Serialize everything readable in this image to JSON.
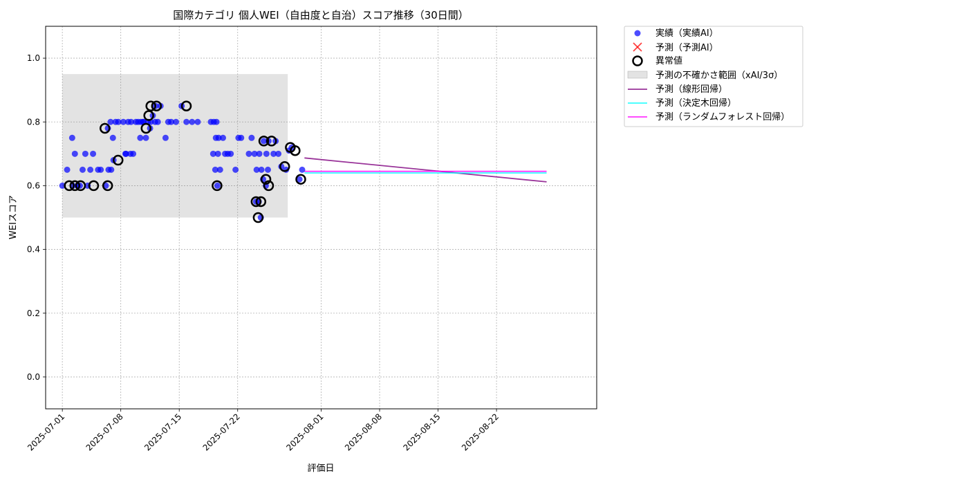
{
  "chart_data": {
    "type": "scatter",
    "title": "国際カテゴリ 個人WEI（自由度と自治）スコア推移（30日間）",
    "xlabel": "評価日",
    "ylabel": "WEIスコア",
    "xlim": [
      "2025-06-29",
      "2025-09-03"
    ],
    "ylim": [
      -0.1,
      1.1
    ],
    "grid": true,
    "legend_position": "outside-top-right",
    "x_ticks": [
      "2025-07-01",
      "2025-07-08",
      "2025-07-15",
      "2025-07-22",
      "2025-08-01",
      "2025-08-08",
      "2025-08-15",
      "2025-08-22"
    ],
    "y_ticks": [
      0.0,
      0.2,
      0.4,
      0.6,
      0.8,
      1.0
    ],
    "legend": [
      {
        "label": "実績（実績AI）",
        "marker": "dot",
        "color": "#0000ff"
      },
      {
        "label": "予測（予測AI）",
        "marker": "x",
        "color": "#ff0000"
      },
      {
        "label": "異常値",
        "marker": "ring",
        "color": "#000000"
      },
      {
        "label": "予測の不確かさ範囲（xAI/3σ）",
        "marker": "band",
        "color": "#808080"
      },
      {
        "label": "予測（線形回帰）",
        "marker": "line",
        "color": "#800080"
      },
      {
        "label": "予測（決定木回帰）",
        "marker": "line",
        "color": "#00ffff"
      },
      {
        "label": "予測（ランダムフォレスト回帰）",
        "marker": "line",
        "color": "#ff00ff"
      }
    ],
    "uncertainty_band": {
      "x_start": "2025-07-01",
      "x_end": "2025-07-28",
      "y_low": 0.5,
      "y_high": 0.95
    },
    "actual": {
      "name": "実績（実績AI）",
      "color": "#0000ff",
      "points": [
        {
          "x": "2025-07-01",
          "y": 0.6
        },
        {
          "x": "2025-07-01",
          "y": 0.65
        },
        {
          "x": "2025-07-02",
          "y": 0.6
        },
        {
          "x": "2025-07-02",
          "y": 0.6
        },
        {
          "x": "2025-07-02",
          "y": 0.7
        },
        {
          "x": "2025-07-02",
          "y": 0.75
        },
        {
          "x": "2025-07-03",
          "y": 0.7
        },
        {
          "x": "2025-07-03",
          "y": 0.65
        },
        {
          "x": "2025-07-03",
          "y": 0.6
        },
        {
          "x": "2025-07-04",
          "y": 0.7
        },
        {
          "x": "2025-07-04",
          "y": 0.65
        },
        {
          "x": "2025-07-04",
          "y": 0.6
        },
        {
          "x": "2025-07-05",
          "y": 0.65
        },
        {
          "x": "2025-07-05",
          "y": 0.65
        },
        {
          "x": "2025-07-06",
          "y": 0.65
        },
        {
          "x": "2025-07-06",
          "y": 0.65
        },
        {
          "x": "2025-07-06",
          "y": 0.6
        },
        {
          "x": "2025-07-06",
          "y": 0.8
        },
        {
          "x": "2025-07-06",
          "y": 0.78
        },
        {
          "x": "2025-07-07",
          "y": 0.68
        },
        {
          "x": "2025-07-07",
          "y": 0.8
        },
        {
          "x": "2025-07-07",
          "y": 0.8
        },
        {
          "x": "2025-07-07",
          "y": 0.75
        },
        {
          "x": "2025-07-08",
          "y": 0.7
        },
        {
          "x": "2025-07-08",
          "y": 0.8
        },
        {
          "x": "2025-07-08",
          "y": 0.8
        },
        {
          "x": "2025-07-08",
          "y": 0.7
        },
        {
          "x": "2025-07-09",
          "y": 0.8
        },
        {
          "x": "2025-07-09",
          "y": 0.8
        },
        {
          "x": "2025-07-09",
          "y": 0.7
        },
        {
          "x": "2025-07-09",
          "y": 0.7
        },
        {
          "x": "2025-07-10",
          "y": 0.8
        },
        {
          "x": "2025-07-10",
          "y": 0.8
        },
        {
          "x": "2025-07-10",
          "y": 0.8
        },
        {
          "x": "2025-07-10",
          "y": 0.8
        },
        {
          "x": "2025-07-10",
          "y": 0.75
        },
        {
          "x": "2025-07-11",
          "y": 0.75
        },
        {
          "x": "2025-07-11",
          "y": 0.8
        },
        {
          "x": "2025-07-11",
          "y": 0.8
        },
        {
          "x": "2025-07-11",
          "y": 0.82
        },
        {
          "x": "2025-07-11",
          "y": 0.78
        },
        {
          "x": "2025-07-12",
          "y": 0.85
        },
        {
          "x": "2025-07-12",
          "y": 0.85
        },
        {
          "x": "2025-07-12",
          "y": 0.8
        },
        {
          "x": "2025-07-12",
          "y": 0.8
        },
        {
          "x": "2025-07-13",
          "y": 0.8
        },
        {
          "x": "2025-07-13",
          "y": 0.75
        },
        {
          "x": "2025-07-14",
          "y": 0.8
        },
        {
          "x": "2025-07-14",
          "y": 0.8
        },
        {
          "x": "2025-07-15",
          "y": 0.85
        },
        {
          "x": "2025-07-15",
          "y": 0.8
        },
        {
          "x": "2025-07-16",
          "y": 0.8
        },
        {
          "x": "2025-07-17",
          "y": 0.8
        },
        {
          "x": "2025-07-18",
          "y": 0.8
        },
        {
          "x": "2025-07-19",
          "y": 0.8
        },
        {
          "x": "2025-07-19",
          "y": 0.8
        },
        {
          "x": "2025-07-19",
          "y": 0.75
        },
        {
          "x": "2025-07-19",
          "y": 0.75
        },
        {
          "x": "2025-07-19",
          "y": 0.7
        },
        {
          "x": "2025-07-19",
          "y": 0.7
        },
        {
          "x": "2025-07-19",
          "y": 0.65
        },
        {
          "x": "2025-07-19",
          "y": 0.65
        },
        {
          "x": "2025-07-19",
          "y": 0.6
        },
        {
          "x": "2025-07-20",
          "y": 0.75
        },
        {
          "x": "2025-07-20",
          "y": 0.7
        },
        {
          "x": "2025-07-20",
          "y": 0.7
        },
        {
          "x": "2025-07-21",
          "y": 0.7
        },
        {
          "x": "2025-07-21",
          "y": 0.65
        },
        {
          "x": "2025-07-22",
          "y": 0.75
        },
        {
          "x": "2025-07-22",
          "y": 0.75
        },
        {
          "x": "2025-07-23",
          "y": 0.75
        },
        {
          "x": "2025-07-23",
          "y": 0.7
        },
        {
          "x": "2025-07-24",
          "y": 0.7
        },
        {
          "x": "2025-07-24",
          "y": 0.7
        },
        {
          "x": "2025-07-24",
          "y": 0.65
        },
        {
          "x": "2025-07-24",
          "y": 0.65
        },
        {
          "x": "2025-07-24",
          "y": 0.55
        },
        {
          "x": "2025-07-24",
          "y": 0.55
        },
        {
          "x": "2025-07-24",
          "y": 0.5
        },
        {
          "x": "2025-07-25",
          "y": 0.7
        },
        {
          "x": "2025-07-25",
          "y": 0.74
        },
        {
          "x": "2025-07-25",
          "y": 0.74
        },
        {
          "x": "2025-07-25",
          "y": 0.6
        },
        {
          "x": "2025-07-25",
          "y": 0.62
        },
        {
          "x": "2025-07-25",
          "y": 0.65
        },
        {
          "x": "2025-07-26",
          "y": 0.7
        },
        {
          "x": "2025-07-26",
          "y": 0.7
        },
        {
          "x": "2025-07-26",
          "y": 0.74
        },
        {
          "x": "2025-07-27",
          "y": 0.66
        },
        {
          "x": "2025-07-27",
          "y": 0.65
        },
        {
          "x": "2025-07-28",
          "y": 0.72
        },
        {
          "x": "2025-07-28",
          "y": 0.71
        },
        {
          "x": "2025-07-29",
          "y": 0.65
        },
        {
          "x": "2025-07-29",
          "y": 0.62
        }
      ]
    },
    "anomalies": {
      "name": "異常値",
      "color": "#000000",
      "points": [
        {
          "x": "2025-07-01",
          "y": 0.6
        },
        {
          "x": "2025-07-02",
          "y": 0.6
        },
        {
          "x": "2025-07-03",
          "y": 0.6
        },
        {
          "x": "2025-07-04",
          "y": 0.6
        },
        {
          "x": "2025-07-06",
          "y": 0.6
        },
        {
          "x": "2025-07-06",
          "y": 0.78
        },
        {
          "x": "2025-07-07",
          "y": 0.68
        },
        {
          "x": "2025-07-11",
          "y": 0.82
        },
        {
          "x": "2025-07-11",
          "y": 0.78
        },
        {
          "x": "2025-07-11",
          "y": 0.85
        },
        {
          "x": "2025-07-12",
          "y": 0.85
        },
        {
          "x": "2025-07-15",
          "y": 0.85
        },
        {
          "x": "2025-07-19",
          "y": 0.6
        },
        {
          "x": "2025-07-24",
          "y": 0.55
        },
        {
          "x": "2025-07-24",
          "y": 0.55
        },
        {
          "x": "2025-07-24",
          "y": 0.5
        },
        {
          "x": "2025-07-25",
          "y": 0.74
        },
        {
          "x": "2025-07-25",
          "y": 0.6
        },
        {
          "x": "2025-07-25",
          "y": 0.62
        },
        {
          "x": "2025-07-26",
          "y": 0.74
        },
        {
          "x": "2025-07-27",
          "y": 0.66
        },
        {
          "x": "2025-07-28",
          "y": 0.72
        },
        {
          "x": "2025-07-28",
          "y": 0.71
        },
        {
          "x": "2025-07-29",
          "y": 0.62
        }
      ]
    },
    "forecasts": [
      {
        "name": "予測（線形回帰）",
        "color": "#800080",
        "points": [
          {
            "x": "2025-07-30",
            "y": 0.687
          },
          {
            "x": "2025-08-28",
            "y": 0.612
          }
        ]
      },
      {
        "name": "予測（決定木回帰）",
        "color": "#00ffff",
        "points": [
          {
            "x": "2025-07-30",
            "y": 0.64
          },
          {
            "x": "2025-08-28",
            "y": 0.64
          }
        ]
      },
      {
        "name": "予測（ランダムフォレスト回帰）",
        "color": "#ff00ff",
        "points": [
          {
            "x": "2025-07-30",
            "y": 0.645
          },
          {
            "x": "2025-08-28",
            "y": 0.645
          }
        ]
      }
    ]
  }
}
